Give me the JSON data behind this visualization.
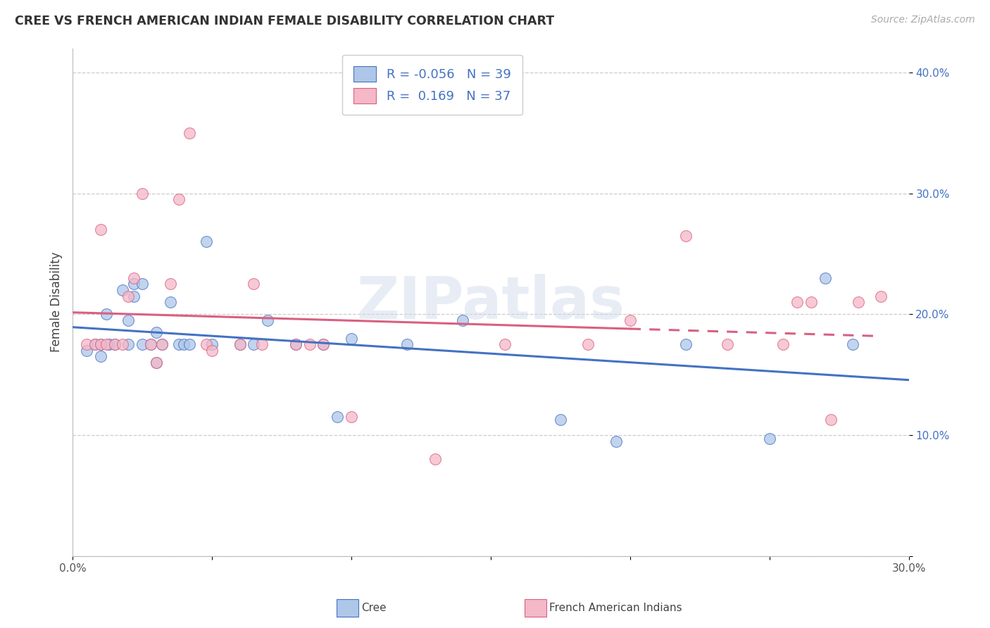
{
  "title": "CREE VS FRENCH AMERICAN INDIAN FEMALE DISABILITY CORRELATION CHART",
  "source": "Source: ZipAtlas.com",
  "xlabel_blue": "Cree",
  "xlabel_pink": "French American Indians",
  "ylabel": "Female Disability",
  "xlim": [
    0.0,
    0.3
  ],
  "ylim": [
    0.0,
    0.42
  ],
  "legend_R_blue": "-0.056",
  "legend_N_blue": "39",
  "legend_R_pink": "0.169",
  "legend_N_pink": "37",
  "blue_color": "#aec6e8",
  "blue_edge": "#4472c4",
  "pink_color": "#f4b8c8",
  "pink_edge": "#d96080",
  "line_blue": "#4472c4",
  "line_pink": "#d96080",
  "watermark_color": "#ccd9ea",
  "blue_x": [
    0.005,
    0.008,
    0.01,
    0.01,
    0.012,
    0.013,
    0.015,
    0.018,
    0.02,
    0.02,
    0.022,
    0.022,
    0.025,
    0.025,
    0.028,
    0.03,
    0.03,
    0.032,
    0.035,
    0.038,
    0.04,
    0.042,
    0.048,
    0.05,
    0.06,
    0.065,
    0.07,
    0.08,
    0.09,
    0.095,
    0.1,
    0.12,
    0.14,
    0.175,
    0.195,
    0.22,
    0.25,
    0.27,
    0.28
  ],
  "blue_y": [
    0.17,
    0.175,
    0.165,
    0.175,
    0.2,
    0.175,
    0.175,
    0.22,
    0.175,
    0.195,
    0.215,
    0.225,
    0.175,
    0.225,
    0.175,
    0.16,
    0.185,
    0.175,
    0.21,
    0.175,
    0.175,
    0.175,
    0.26,
    0.175,
    0.175,
    0.175,
    0.195,
    0.175,
    0.175,
    0.115,
    0.18,
    0.175,
    0.195,
    0.113,
    0.095,
    0.175,
    0.097,
    0.23,
    0.175
  ],
  "pink_x": [
    0.005,
    0.008,
    0.01,
    0.01,
    0.012,
    0.015,
    0.018,
    0.02,
    0.022,
    0.025,
    0.028,
    0.03,
    0.032,
    0.035,
    0.038,
    0.042,
    0.048,
    0.05,
    0.06,
    0.065,
    0.068,
    0.08,
    0.085,
    0.09,
    0.1,
    0.13,
    0.155,
    0.185,
    0.2,
    0.22,
    0.235,
    0.255,
    0.26,
    0.265,
    0.272,
    0.282,
    0.29
  ],
  "pink_y": [
    0.175,
    0.175,
    0.175,
    0.27,
    0.175,
    0.175,
    0.175,
    0.215,
    0.23,
    0.3,
    0.175,
    0.16,
    0.175,
    0.225,
    0.295,
    0.35,
    0.175,
    0.17,
    0.175,
    0.225,
    0.175,
    0.175,
    0.175,
    0.175,
    0.115,
    0.08,
    0.175,
    0.175,
    0.195,
    0.265,
    0.175,
    0.175,
    0.21,
    0.21,
    0.113,
    0.21,
    0.215
  ]
}
